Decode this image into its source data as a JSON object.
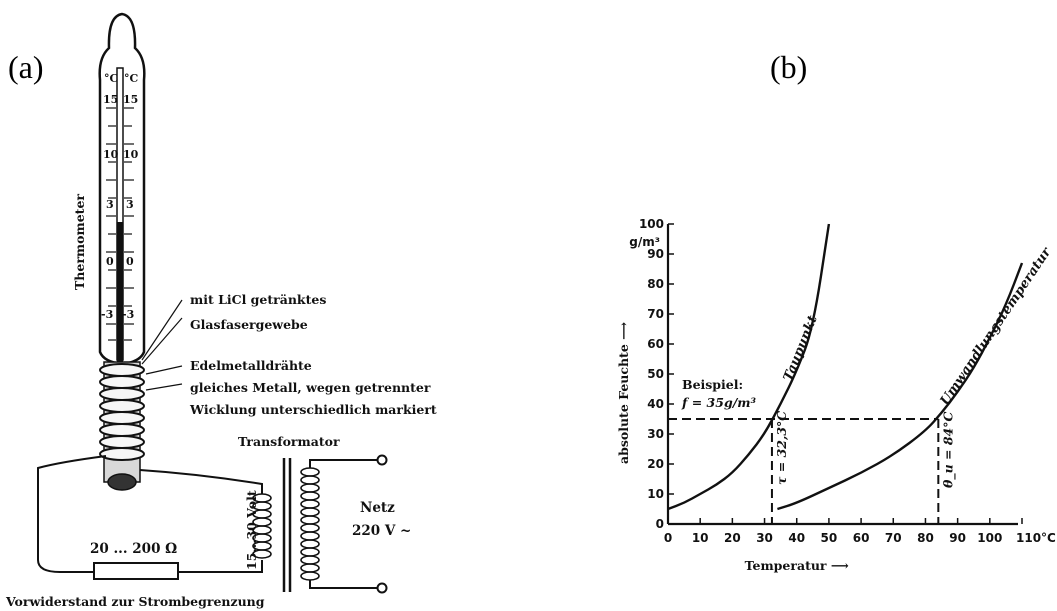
{
  "panels": {
    "a": "(a)",
    "b": "(b)"
  },
  "thermometer": {
    "label": "Thermometer",
    "unit_left": "°C",
    "unit_right": "°C",
    "scale_left": [
      "15",
      "10",
      "3",
      "0",
      "-3"
    ],
    "scale_right": [
      "15",
      "10",
      "3",
      "0",
      "-3"
    ]
  },
  "annotations": {
    "licl_line1": "mit LiCl getränktes",
    "licl_line2": "Glasfasergewebe",
    "wire_line1": "Edelmetalldrähte",
    "wire_line2": "gleiches Metall, wegen getrennter",
    "wire_line3": "Wicklung unterschiedlich markiert",
    "transformer": "Transformator",
    "voltage": "15...30 Volt",
    "mains_line1": "Netz",
    "mains_line2": "220 V ~",
    "resistor_value": "20 ... 200 Ω",
    "resistor_caption": "Vorwiderstand zur Strombegrenzung"
  },
  "chart_data": {
    "type": "line",
    "xlabel": "Temperatur",
    "ylabel": "absolute Feuchte",
    "y_unit": "g/m³",
    "x_unit": "°C",
    "xlim": [
      0,
      110
    ],
    "ylim": [
      0,
      100
    ],
    "x_ticks": [
      "0",
      "10",
      "20",
      "30",
      "40",
      "50",
      "60",
      "70",
      "80",
      "90",
      "100",
      "110°C"
    ],
    "y_ticks": [
      "0",
      "10",
      "20",
      "30",
      "40",
      "50",
      "60",
      "70",
      "80",
      "90",
      "100"
    ],
    "grid": false,
    "series": [
      {
        "name": "Taupunkt",
        "x": [
          0,
          5,
          10,
          15,
          20,
          25,
          30,
          35,
          40,
          45,
          50
        ],
        "y": [
          5,
          7,
          10,
          13,
          17,
          23,
          30,
          40,
          51,
          65,
          100
        ]
      },
      {
        "name": "Umwandlungstemperatur",
        "x": [
          34,
          40,
          50,
          60,
          70,
          80,
          85,
          90,
          95,
          100,
          105,
          110
        ],
        "y": [
          5,
          7,
          12,
          17,
          23,
          31,
          37,
          44,
          52,
          62,
          73,
          87
        ]
      }
    ],
    "annotations": {
      "example_title": "Beispiel:",
      "example_value": "f = 35g/m³",
      "dewpoint_value": "τ = 32,3°C",
      "transition_value": "θ_u = 84°C"
    },
    "example": {
      "f": 35,
      "tau": 32.3,
      "theta_u": 84
    }
  }
}
